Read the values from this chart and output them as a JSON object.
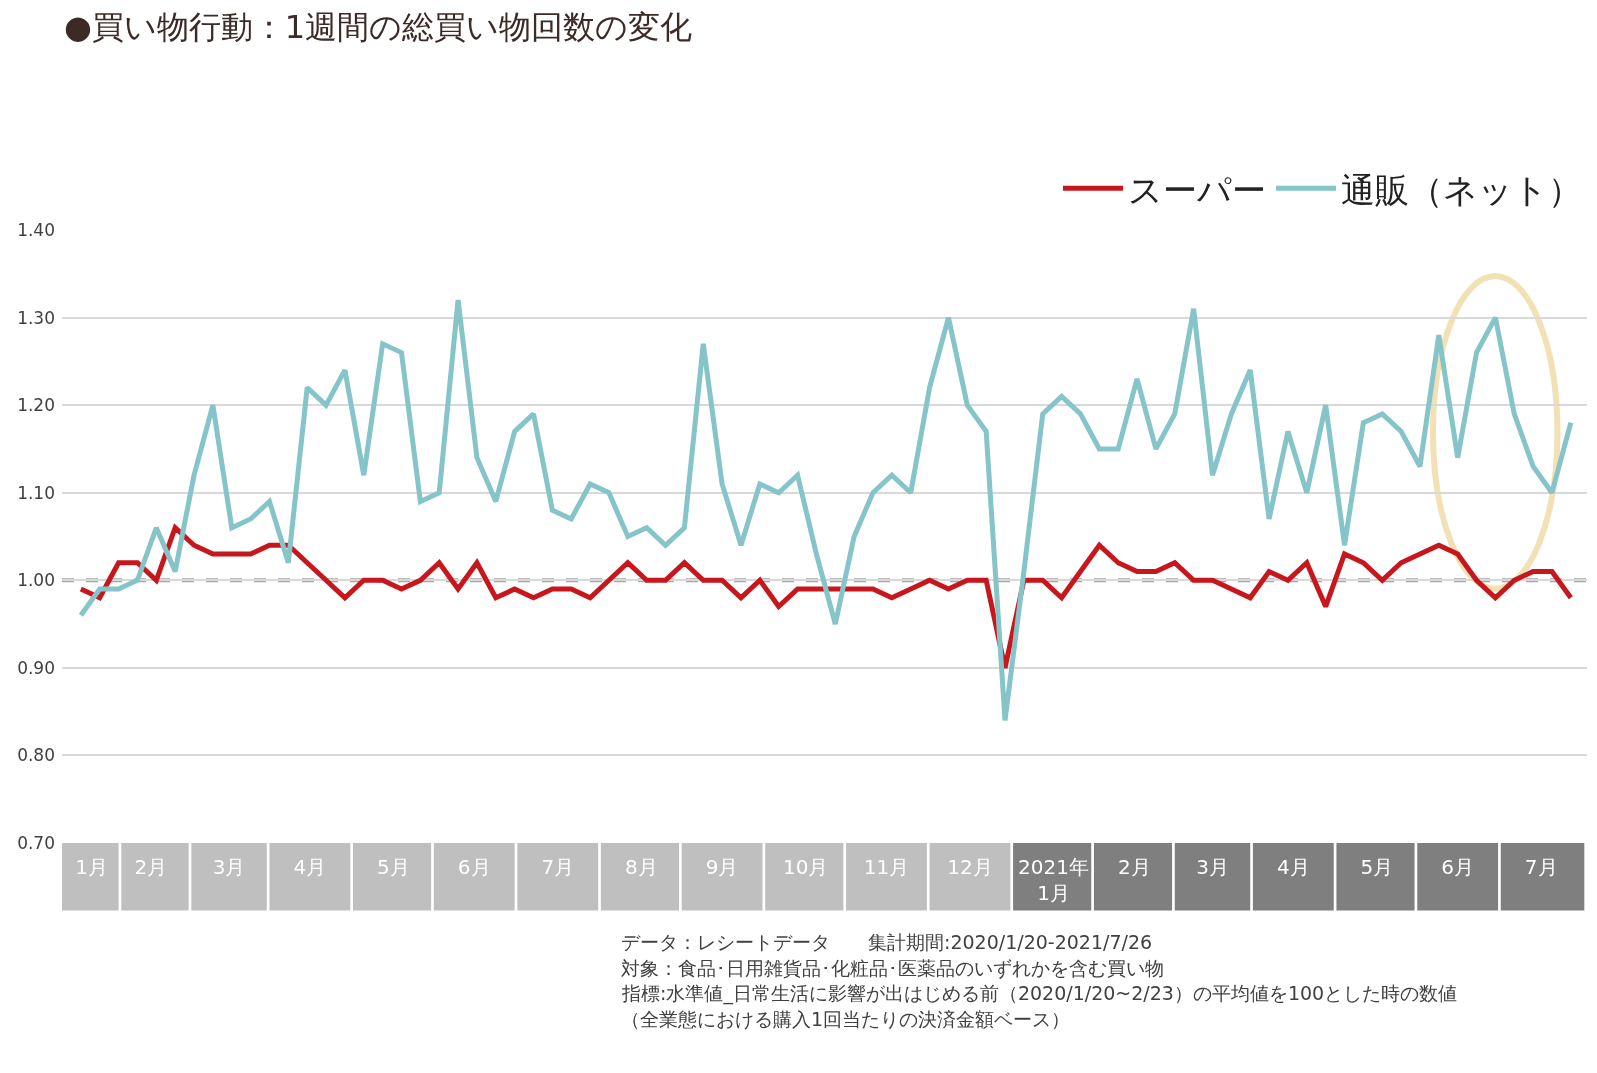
{
  "chart_data": {
    "type": "line",
    "title": "●買い物行動：1週間の総買い物回数の変化",
    "x": [
      "2020-01-20",
      "2020-01-27",
      "2020-02-03",
      "2020-02-10",
      "2020-02-17",
      "2020-02-24",
      "2020-03-02",
      "2020-03-09",
      "2020-03-16",
      "2020-03-23",
      "2020-03-30",
      "2020-04-06",
      "2020-04-13",
      "2020-04-20",
      "2020-04-27",
      "2020-05-04",
      "2020-05-11",
      "2020-05-18",
      "2020-05-25",
      "2020-06-01",
      "2020-06-08",
      "2020-06-15",
      "2020-06-22",
      "2020-06-29",
      "2020-07-06",
      "2020-07-13",
      "2020-07-20",
      "2020-07-27",
      "2020-08-03",
      "2020-08-10",
      "2020-08-17",
      "2020-08-24",
      "2020-08-31",
      "2020-09-07",
      "2020-09-14",
      "2020-09-21",
      "2020-09-28",
      "2020-10-05",
      "2020-10-12",
      "2020-10-19",
      "2020-10-26",
      "2020-11-02",
      "2020-11-09",
      "2020-11-16",
      "2020-11-23",
      "2020-11-30",
      "2020-12-07",
      "2020-12-14",
      "2020-12-21",
      "2020-12-28",
      "2021-01-04",
      "2021-01-11",
      "2021-01-18",
      "2021-01-25",
      "2021-02-01",
      "2021-02-08",
      "2021-02-15",
      "2021-02-22",
      "2021-03-01",
      "2021-03-08",
      "2021-03-15",
      "2021-03-22",
      "2021-03-29",
      "2021-04-05",
      "2021-04-12",
      "2021-04-19",
      "2021-04-26",
      "2021-05-03",
      "2021-05-10",
      "2021-05-17",
      "2021-05-24",
      "2021-05-31",
      "2021-06-07",
      "2021-06-14",
      "2021-06-21",
      "2021-06-28",
      "2021-07-05",
      "2021-07-12",
      "2021-07-19",
      "2021-07-26"
    ],
    "series": [
      {
        "name": "スーパー",
        "color": "#c8161d",
        "values": [
          0.99,
          0.98,
          1.02,
          1.02,
          1.0,
          1.06,
          1.04,
          1.03,
          1.03,
          1.03,
          1.04,
          1.04,
          1.02,
          1.0,
          0.98,
          1.0,
          1.0,
          0.99,
          1.0,
          1.02,
          0.99,
          1.02,
          0.98,
          0.99,
          0.98,
          0.99,
          0.99,
          0.98,
          1.0,
          1.02,
          1.0,
          1.0,
          1.02,
          1.0,
          1.0,
          0.98,
          1.0,
          0.97,
          0.99,
          0.99,
          0.99,
          0.99,
          0.99,
          0.98,
          0.99,
          1.0,
          0.99,
          1.0,
          1.0,
          0.9,
          1.0,
          1.0,
          0.98,
          1.01,
          1.04,
          1.02,
          1.01,
          1.01,
          1.02,
          1.0,
          1.0,
          0.99,
          0.98,
          1.01,
          1.0,
          1.02,
          0.97,
          1.03,
          1.02,
          1.0,
          1.02,
          1.03,
          1.04,
          1.03,
          1.0,
          0.98,
          1.0,
          1.01,
          1.01,
          0.98
        ]
      },
      {
        "name": "通販（ネット）",
        "color": "#85c4c8",
        "values": [
          0.96,
          0.99,
          0.99,
          1.0,
          1.06,
          1.01,
          1.12,
          1.2,
          1.06,
          1.07,
          1.09,
          1.02,
          1.22,
          1.2,
          1.24,
          1.12,
          1.27,
          1.26,
          1.09,
          1.1,
          1.32,
          1.14,
          1.09,
          1.17,
          1.19,
          1.08,
          1.07,
          1.11,
          1.1,
          1.05,
          1.06,
          1.04,
          1.06,
          1.27,
          1.11,
          1.04,
          1.11,
          1.1,
          1.12,
          1.03,
          0.95,
          1.05,
          1.1,
          1.12,
          1.1,
          1.22,
          1.3,
          1.2,
          1.17,
          0.84,
          1.01,
          1.19,
          1.21,
          1.19,
          1.15,
          1.15,
          1.23,
          1.15,
          1.19,
          1.31,
          1.12,
          1.19,
          1.24,
          1.07,
          1.17,
          1.1,
          1.2,
          1.04,
          1.18,
          1.19,
          1.17,
          1.13,
          1.28,
          1.14,
          1.26,
          1.3,
          1.19,
          1.13,
          1.1,
          1.18
        ]
      }
    ],
    "xlim": [
      "2020-01-13",
      "2021-08-01"
    ],
    "xticks": [
      {
        "value": "2020-01-24",
        "label": "1月"
      },
      {
        "value": "2020-02-15",
        "label": "2月"
      },
      {
        "value": "2020-03-15",
        "label": "3月"
      },
      {
        "value": "2020-04-14",
        "label": "4月"
      },
      {
        "value": "2020-05-15",
        "label": "5月"
      },
      {
        "value": "2020-06-14",
        "label": "6月"
      },
      {
        "value": "2020-07-15",
        "label": "7月"
      },
      {
        "value": "2020-08-15",
        "label": "8月"
      },
      {
        "value": "2020-09-14",
        "label": "9月"
      },
      {
        "value": "2020-10-15",
        "label": "10月"
      },
      {
        "value": "2020-11-14",
        "label": "11月"
      },
      {
        "value": "2020-12-15",
        "label": "12月"
      },
      {
        "value": "2021-01-15",
        "label": "2021年\n1月"
      },
      {
        "value": "2021-02-14",
        "label": "2月"
      },
      {
        "value": "2021-03-15",
        "label": "3月"
      },
      {
        "value": "2021-04-14",
        "label": "4月"
      },
      {
        "value": "2021-05-15",
        "label": "5月"
      },
      {
        "value": "2021-06-14",
        "label": "6月"
      },
      {
        "value": "2021-07-15",
        "label": "7月"
      }
    ],
    "ylim": [
      0.7,
      1.4
    ],
    "yticks": [
      {
        "value": 0.7,
        "label": "0.70"
      },
      {
        "value": 0.8,
        "label": "0.80"
      },
      {
        "value": 0.9,
        "label": "0.90"
      },
      {
        "value": 1.0,
        "label": "1.00"
      },
      {
        "value": 1.1,
        "label": "1.10"
      },
      {
        "value": 1.2,
        "label": "1.20"
      },
      {
        "value": 1.3,
        "label": "1.30"
      },
      {
        "value": 1.4,
        "label": "1.40"
      }
    ],
    "grid": "y",
    "legend": "top right",
    "line_style": "solid",
    "marker": "none",
    "ref_lines": [
      {
        "axis": "y",
        "value": 1.0,
        "color": "#a6a6a6",
        "line_style": "dashed"
      }
    ],
    "annotations": [
      "データ：レシートデータ　　集計期間:2020/1/20-2021/7/26",
      "対象：食品･日用雑貨品･化粧品･医薬品のいずれかを含む買い物",
      "指標:水準値_日常生活に影響が出はじめる前（2020/1/20~2/23）の平均値を100とした時の数値",
      "（全業態における購入1回当たりの決済金額ベース）"
    ]
  }
}
